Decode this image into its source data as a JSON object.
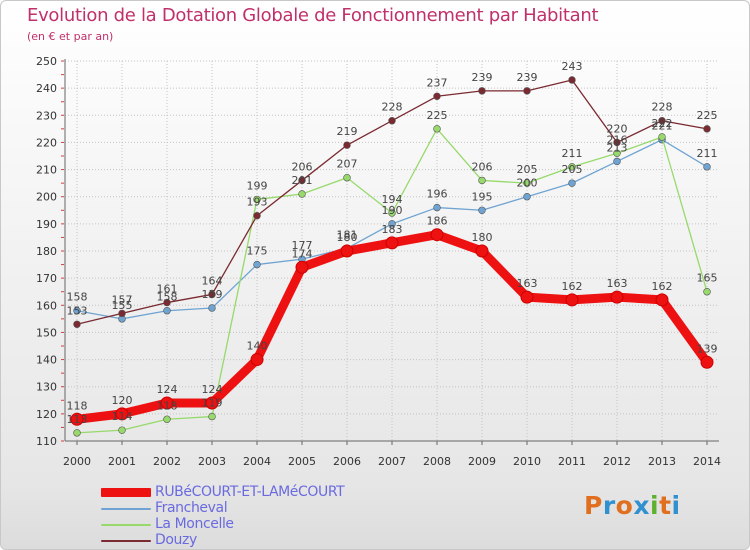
{
  "title": "Evolution de la Dotation Globale de Fonctionnement par Habitant",
  "subtitle": "(en € et par an)",
  "logo": {
    "text": "Proxiti",
    "colors": [
      "#e07020",
      "#3090d0",
      "#e07020",
      "#3090d0",
      "#60b030",
      "#e07020",
      "#3090d0"
    ]
  },
  "chart_data": {
    "type": "line",
    "title": "Evolution de la Dotation Globale de Fonctionnement par Habitant",
    "subtitle": "(en € et par an)",
    "x": [
      "2000",
      "2001",
      "2002",
      "2003",
      "2004",
      "2005",
      "2006",
      "2007",
      "2008",
      "2009",
      "2010",
      "2011",
      "2012",
      "2013",
      "2014"
    ],
    "ylim": [
      110,
      250
    ],
    "yticks": [
      110,
      120,
      130,
      140,
      150,
      160,
      170,
      180,
      190,
      200,
      210,
      220,
      230,
      240,
      250
    ],
    "series": [
      {
        "name": "RUBéCOURT-ET-LAMéCOURT",
        "color": "#ee1111",
        "values": [
          118,
          120,
          124,
          124,
          140,
          174,
          180,
          183,
          186,
          180,
          163,
          162,
          163,
          162,
          139
        ]
      },
      {
        "name": "Francheval",
        "color": "#6fa4d2",
        "values": [
          158,
          155,
          158,
          159,
          175,
          177,
          181,
          190,
          196,
          195,
          200,
          205,
          213,
          221,
          211
        ]
      },
      {
        "name": "La Moncelle",
        "color": "#97d96b",
        "values": [
          113,
          114,
          118,
          119,
          199,
          201,
          207,
          194,
          225,
          206,
          205,
          211,
          216,
          222,
          165
        ]
      },
      {
        "name": "Douzy",
        "color": "#7a2a30",
        "values": [
          153,
          157,
          161,
          164,
          193,
          206,
          219,
          228,
          237,
          239,
          239,
          243,
          220,
          228,
          225
        ]
      }
    ]
  }
}
